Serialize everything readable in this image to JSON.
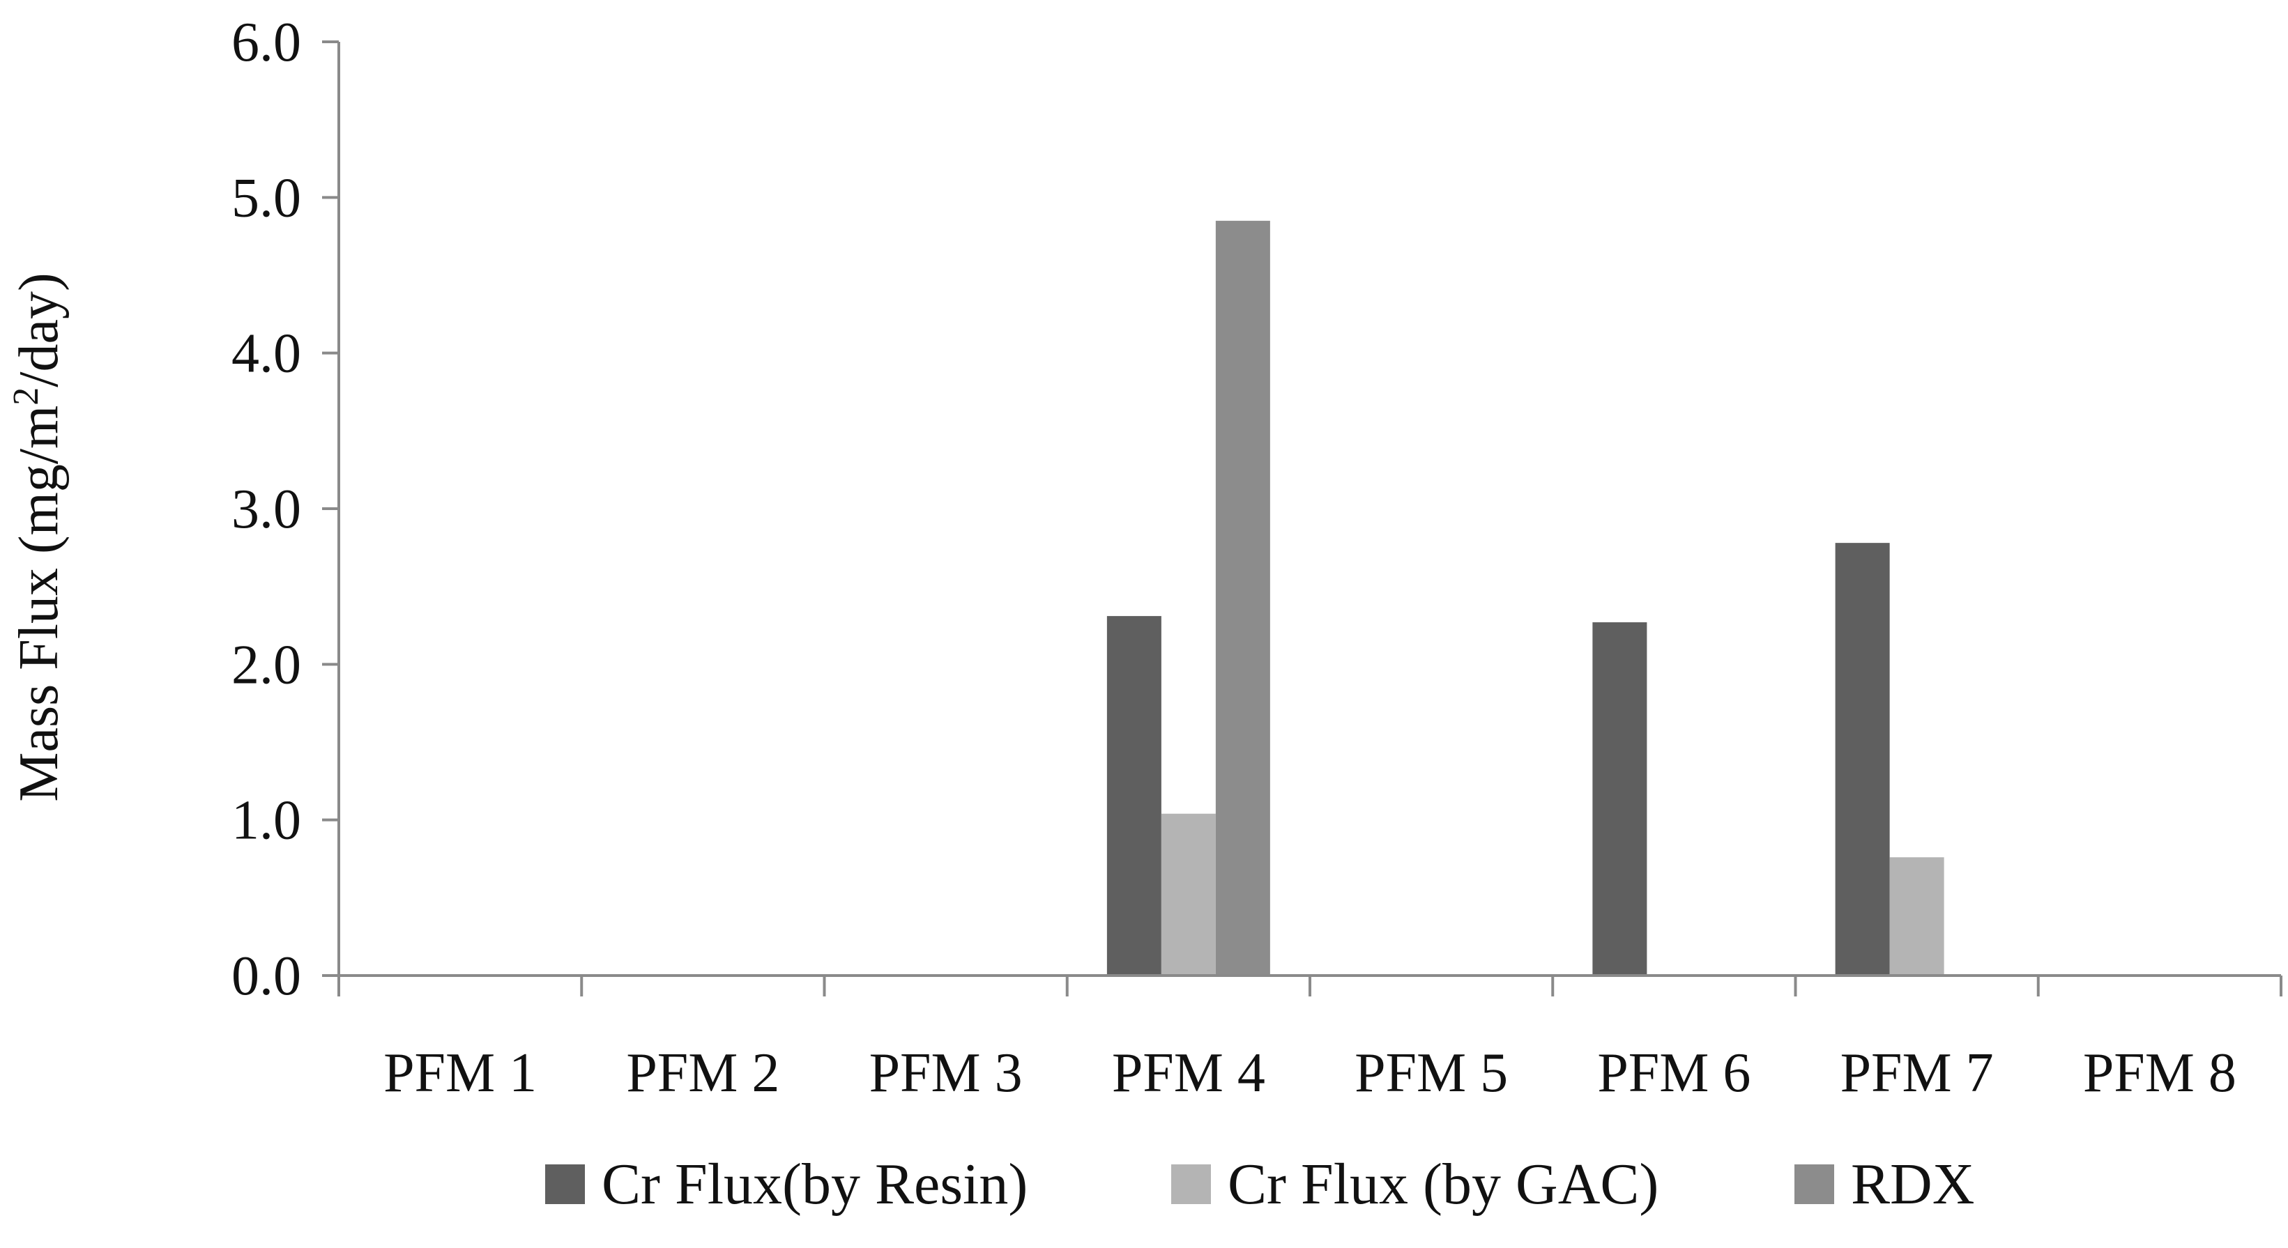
{
  "chart_data": {
    "type": "bar",
    "categories": [
      "PFM 1",
      "PFM 2",
      "PFM 3",
      "PFM 4",
      "PFM 5",
      "PFM 6",
      "PFM 7",
      "PFM 8"
    ],
    "series": [
      {
        "name": "Cr Flux(by Resin)",
        "color": "#5f5f5f",
        "values": [
          0,
          0,
          0,
          2.31,
          0,
          2.27,
          2.78,
          0
        ]
      },
      {
        "name": "Cr Flux (by GAC)",
        "color": "#b4b4b4",
        "values": [
          0,
          0,
          0,
          1.04,
          0,
          0,
          0.76,
          0
        ]
      },
      {
        "name": "RDX",
        "color": "#8c8c8c",
        "values": [
          0,
          0,
          0,
          4.85,
          0,
          0,
          0,
          0
        ]
      }
    ],
    "ylabel_main": "Mass Flux (mg/m",
    "ylabel_sup": "2",
    "ylabel_end": "/day)",
    "ylim": [
      0,
      6
    ],
    "yticks": [
      "0.0",
      "1.0",
      "2.0",
      "3.0",
      "4.0",
      "5.0",
      "6.0"
    ],
    "grid": false,
    "legend_position": "bottom"
  },
  "colors": {
    "axis": "#8a8a8a"
  }
}
